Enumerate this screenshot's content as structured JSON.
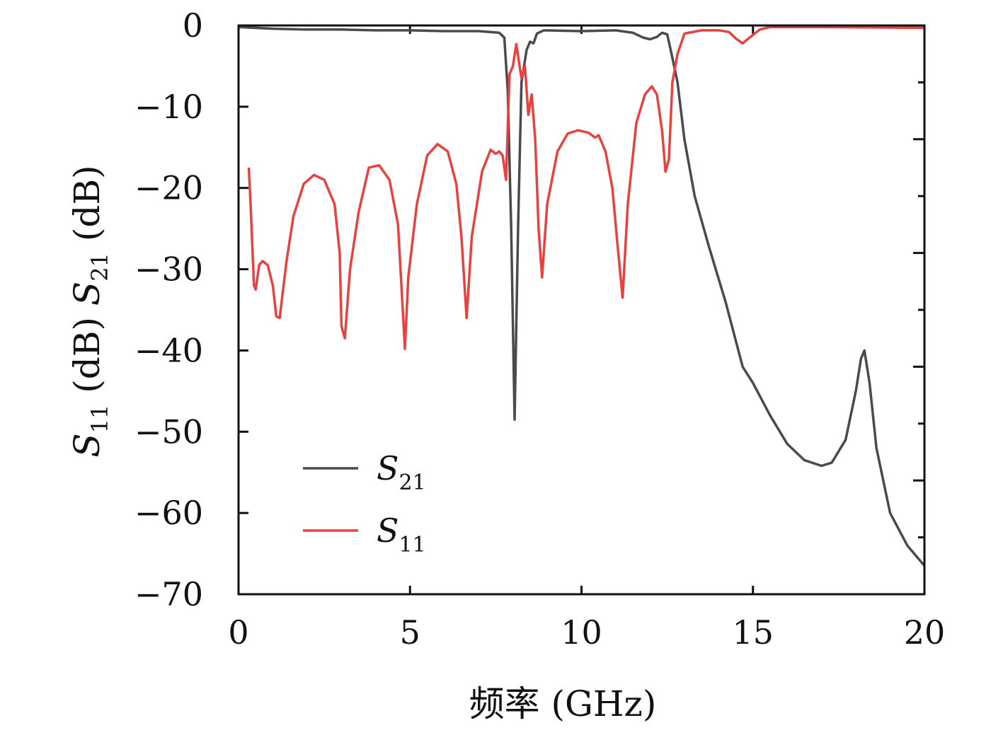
{
  "chart_data": {
    "type": "line",
    "xlabel": "频率 (GHz)",
    "ylabel": "S11 (dB) S21 (dB)",
    "xlim": [
      0,
      20
    ],
    "ylim": [
      -70,
      0
    ],
    "x_ticks": [
      "0",
      "5",
      "10",
      "15",
      "20"
    ],
    "y_ticks": [
      "0",
      "−10",
      "−20",
      "−30",
      "−40",
      "−50",
      "−60",
      "−70"
    ],
    "legend_position": "lower-left",
    "grid": false,
    "series": [
      {
        "name": "S21",
        "color": "#4a4a4a",
        "points": [
          [
            0.0,
            -0.2
          ],
          [
            1.0,
            -0.4
          ],
          [
            2.0,
            -0.5
          ],
          [
            3.0,
            -0.5
          ],
          [
            4.0,
            -0.6
          ],
          [
            5.0,
            -0.6
          ],
          [
            6.0,
            -0.7
          ],
          [
            7.0,
            -0.7
          ],
          [
            7.6,
            -0.9
          ],
          [
            7.75,
            -1.5
          ],
          [
            7.85,
            -8
          ],
          [
            7.95,
            -25
          ],
          [
            8.05,
            -48.5
          ],
          [
            8.15,
            -25
          ],
          [
            8.25,
            -7
          ],
          [
            8.4,
            -3
          ],
          [
            8.5,
            -2
          ],
          [
            8.6,
            -2.2
          ],
          [
            8.7,
            -1
          ],
          [
            8.9,
            -0.6
          ],
          [
            10.0,
            -0.7
          ],
          [
            11.0,
            -0.6
          ],
          [
            11.5,
            -0.9
          ],
          [
            11.8,
            -1.5
          ],
          [
            12.0,
            -1.7
          ],
          [
            12.2,
            -1.4
          ],
          [
            12.35,
            -0.9
          ],
          [
            12.5,
            -1.1
          ],
          [
            12.6,
            -3
          ],
          [
            12.8,
            -7
          ],
          [
            13.0,
            -14
          ],
          [
            13.3,
            -21
          ],
          [
            13.7,
            -27
          ],
          [
            14.2,
            -34
          ],
          [
            14.7,
            -42
          ],
          [
            15.0,
            -44
          ],
          [
            15.5,
            -48
          ],
          [
            16.0,
            -51.5
          ],
          [
            16.5,
            -53.5
          ],
          [
            17.0,
            -54.2
          ],
          [
            17.3,
            -53.8
          ],
          [
            17.7,
            -51
          ],
          [
            18.0,
            -45
          ],
          [
            18.15,
            -41
          ],
          [
            18.25,
            -40
          ],
          [
            18.4,
            -44
          ],
          [
            18.6,
            -52
          ],
          [
            19.0,
            -60
          ],
          [
            19.5,
            -64
          ],
          [
            20.0,
            -66.5
          ]
        ]
      },
      {
        "name": "S11",
        "color": "#e8413e",
        "points": [
          [
            0.3,
            -17.5
          ],
          [
            0.35,
            -22
          ],
          [
            0.45,
            -32
          ],
          [
            0.5,
            -32.5
          ],
          [
            0.6,
            -29.5
          ],
          [
            0.7,
            -29
          ],
          [
            0.85,
            -29.5
          ],
          [
            1.0,
            -32
          ],
          [
            1.1,
            -35.8
          ],
          [
            1.2,
            -36
          ],
          [
            1.4,
            -29
          ],
          [
            1.6,
            -23.5
          ],
          [
            1.9,
            -19.5
          ],
          [
            2.2,
            -18.4
          ],
          [
            2.5,
            -19
          ],
          [
            2.8,
            -22
          ],
          [
            2.95,
            -28
          ],
          [
            3.0,
            -37
          ],
          [
            3.1,
            -38.5
          ],
          [
            3.25,
            -30
          ],
          [
            3.5,
            -23
          ],
          [
            3.8,
            -17.5
          ],
          [
            4.1,
            -17.2
          ],
          [
            4.4,
            -19
          ],
          [
            4.65,
            -24.5
          ],
          [
            4.75,
            -32
          ],
          [
            4.85,
            -39.8
          ],
          [
            4.95,
            -31
          ],
          [
            5.2,
            -22
          ],
          [
            5.5,
            -16
          ],
          [
            5.8,
            -14.6
          ],
          [
            6.1,
            -15.5
          ],
          [
            6.35,
            -19.5
          ],
          [
            6.5,
            -26
          ],
          [
            6.65,
            -36
          ],
          [
            6.8,
            -26
          ],
          [
            7.1,
            -18
          ],
          [
            7.35,
            -15.3
          ],
          [
            7.5,
            -15.8
          ],
          [
            7.6,
            -15.5
          ],
          [
            7.7,
            -16
          ],
          [
            7.8,
            -19
          ],
          [
            7.9,
            -6
          ],
          [
            8.0,
            -5
          ],
          [
            8.1,
            -2.3
          ],
          [
            8.25,
            -6.5
          ],
          [
            8.35,
            -5
          ],
          [
            8.45,
            -11
          ],
          [
            8.55,
            -8.5
          ],
          [
            8.65,
            -14
          ],
          [
            8.75,
            -25
          ],
          [
            8.85,
            -31
          ],
          [
            9.0,
            -22
          ],
          [
            9.3,
            -15.5
          ],
          [
            9.6,
            -13.3
          ],
          [
            9.9,
            -12.9
          ],
          [
            10.2,
            -13.2
          ],
          [
            10.4,
            -13.8
          ],
          [
            10.5,
            -13.5
          ],
          [
            10.7,
            -15.5
          ],
          [
            10.9,
            -20
          ],
          [
            11.05,
            -27
          ],
          [
            11.2,
            -33.5
          ],
          [
            11.35,
            -22
          ],
          [
            11.6,
            -12
          ],
          [
            11.85,
            -8.5
          ],
          [
            12.05,
            -7.5
          ],
          [
            12.2,
            -8.5
          ],
          [
            12.35,
            -13
          ],
          [
            12.45,
            -18
          ],
          [
            12.55,
            -16.5
          ],
          [
            12.65,
            -7
          ],
          [
            12.8,
            -3.5
          ],
          [
            13.0,
            -1
          ],
          [
            13.5,
            -0.6
          ],
          [
            14.0,
            -0.6
          ],
          [
            14.3,
            -0.8
          ],
          [
            14.5,
            -1.6
          ],
          [
            14.7,
            -2.2
          ],
          [
            14.9,
            -1.5
          ],
          [
            15.2,
            -0.5
          ],
          [
            15.5,
            -0.2
          ],
          [
            17.0,
            -0.2
          ],
          [
            20.0,
            -0.3
          ]
        ]
      }
    ]
  }
}
